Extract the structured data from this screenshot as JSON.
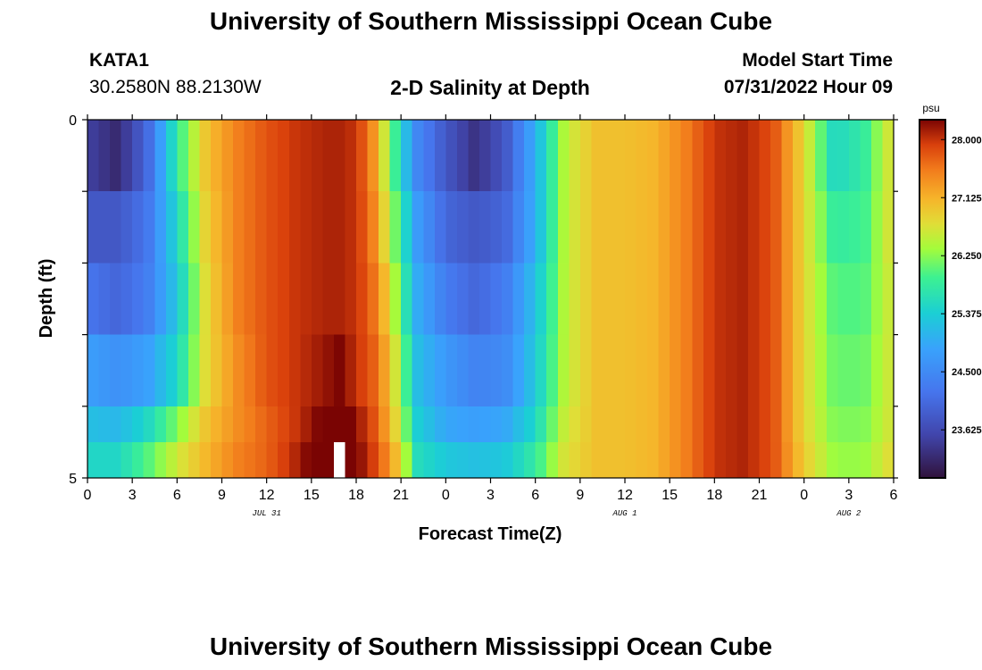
{
  "page": {
    "title": "University of Southern Mississippi Ocean Cube",
    "footer_title": "University of Southern Mississippi Ocean Cube",
    "station": "KATA1",
    "coords": "30.2580N  88.2130W",
    "model_start_label": "Model Start Time",
    "model_start_value": "07/31/2022 Hour 09"
  },
  "chart_data": {
    "type": "heatmap",
    "title": "2-D Salinity at Depth",
    "xlabel": "Forecast Time(Z)",
    "ylabel": "Depth (ft)",
    "y_ticks": [
      "0",
      "5"
    ],
    "ylim": [
      0,
      5
    ],
    "x_tick_labels": [
      "0",
      "3",
      "6",
      "9",
      "12",
      "15",
      "18",
      "21",
      "0",
      "3",
      "6",
      "9",
      "12",
      "15",
      "18",
      "21",
      "0",
      "3",
      "6"
    ],
    "x_range_hours": [
      0,
      54
    ],
    "date_labels": [
      {
        "text": "JUL 31",
        "hour": 12
      },
      {
        "text": "AUG 1",
        "hour": 36
      },
      {
        "text": "AUG 2",
        "hour": 51
      }
    ],
    "units": "psu",
    "colorbar": {
      "ticks": [
        28.0,
        27.125,
        26.25,
        25.375,
        24.5,
        23.625
      ],
      "tick_labels": [
        "28.000",
        "27.125",
        "26.250",
        "25.375",
        "24.500",
        "23.625"
      ],
      "min": 22.9,
      "max": 28.3
    },
    "depth_layers": [
      0.0,
      1.0,
      2.0,
      3.0,
      4.0,
      4.5
    ],
    "time_keyframes_hours": [
      0,
      2,
      4,
      6,
      8,
      10,
      12,
      14,
      16,
      17,
      18,
      19,
      20,
      21,
      22,
      24,
      26,
      28,
      30,
      32,
      34,
      36,
      38,
      40,
      42,
      44,
      46,
      48,
      50,
      52,
      54
    ],
    "salinity_psu": [
      [
        23.5,
        23.2,
        24.0,
        25.8,
        27.0,
        27.5,
        27.8,
        28.0,
        28.1,
        28.1,
        28.0,
        27.5,
        26.5,
        25.5,
        24.5,
        23.8,
        23.3,
        23.8,
        25.0,
        26.5,
        27.0,
        27.0,
        27.1,
        27.5,
        28.0,
        28.1,
        27.8,
        26.8,
        25.5,
        25.8,
        26.8
      ],
      [
        23.8,
        23.8,
        24.2,
        25.5,
        26.9,
        27.5,
        27.8,
        28.0,
        28.1,
        28.1,
        28.0,
        27.6,
        26.7,
        25.8,
        24.8,
        24.0,
        23.8,
        24.0,
        25.0,
        26.5,
        27.0,
        27.0,
        27.1,
        27.5,
        28.0,
        28.1,
        27.8,
        26.8,
        25.8,
        25.9,
        26.8
      ],
      [
        24.2,
        24.0,
        24.3,
        25.3,
        26.8,
        27.5,
        27.8,
        28.0,
        28.1,
        28.1,
        28.0,
        27.7,
        27.0,
        26.0,
        25.0,
        24.3,
        24.0,
        24.3,
        25.2,
        26.5,
        27.0,
        27.0,
        27.1,
        27.5,
        28.0,
        28.1,
        27.8,
        26.8,
        26.0,
        26.0,
        26.7
      ],
      [
        24.8,
        24.6,
        24.8,
        25.5,
        26.8,
        27.4,
        27.8,
        28.0,
        28.2,
        28.3,
        28.0,
        27.8,
        27.2,
        26.3,
        25.2,
        24.7,
        24.4,
        24.5,
        25.3,
        26.5,
        27.0,
        27.0,
        27.1,
        27.5,
        28.0,
        28.1,
        27.8,
        26.8,
        26.1,
        26.1,
        26.7
      ],
      [
        25.2,
        25.1,
        25.5,
        26.2,
        27.0,
        27.4,
        27.7,
        28.0,
        28.4,
        28.5,
        28.2,
        27.9,
        27.3,
        26.5,
        25.4,
        24.9,
        24.8,
        24.9,
        25.5,
        26.6,
        27.0,
        27.0,
        27.1,
        27.5,
        28.0,
        28.1,
        27.8,
        26.8,
        26.2,
        26.2,
        26.7
      ],
      [
        25.5,
        25.5,
        26.0,
        26.6,
        27.1,
        27.5,
        27.7,
        28.1,
        28.6,
        null,
        28.3,
        28.0,
        27.5,
        26.8,
        25.6,
        25.3,
        25.2,
        25.3,
        25.8,
        26.7,
        27.0,
        27.0,
        27.1,
        27.5,
        28.0,
        28.1,
        27.8,
        26.9,
        26.3,
        26.3,
        26.8
      ]
    ],
    "grid": false,
    "legend_position": "right"
  }
}
